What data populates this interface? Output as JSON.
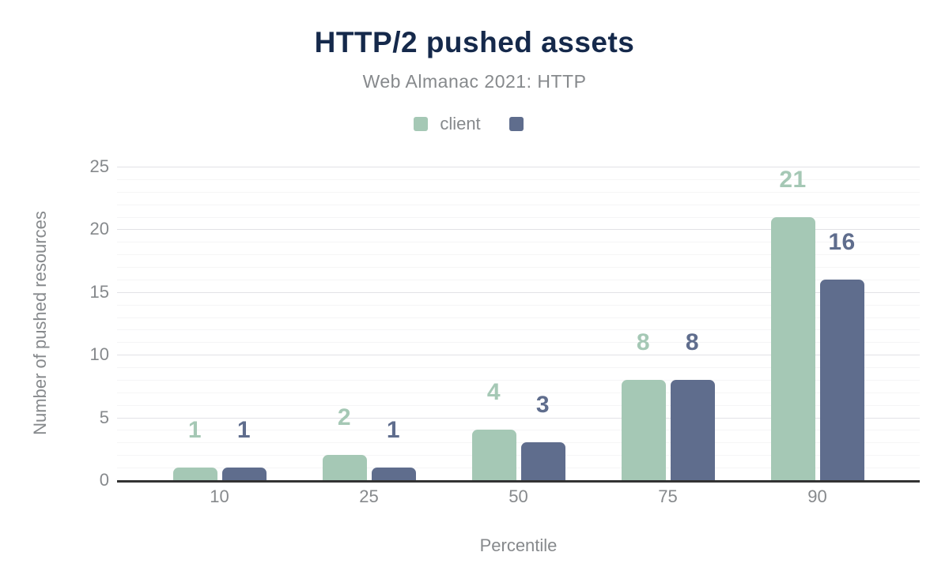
{
  "colors": {
    "title_text": "#15294b",
    "muted_text": "#86898c",
    "axis_line": "#333333",
    "grid_major": "#e2e2e6",
    "grid_minor": "#f5f5f6",
    "background": "#ffffff",
    "series_client": "#a5c8b5",
    "series_second": "#5f6d8d"
  },
  "chart_data": {
    "type": "bar",
    "title": "HTTP/2 pushed assets",
    "subtitle": "Web Almanac 2021: HTTP",
    "categories": [
      "10",
      "25",
      "50",
      "75",
      "90"
    ],
    "series": [
      {
        "name": "client",
        "color": "#a5c8b5",
        "values": [
          1,
          2,
          4,
          8,
          21
        ]
      },
      {
        "name": "",
        "color": "#5f6d8d",
        "values": [
          1,
          1,
          3,
          8,
          16
        ]
      }
    ],
    "xlabel": "Percentile",
    "ylabel": "Number of pushed resources",
    "ylim": [
      0,
      25
    ],
    "ytick_step": 5,
    "ytick_labels": [
      "0",
      "5",
      "10",
      "15",
      "20",
      "25"
    ],
    "grid": "horizontal",
    "legend_position": "top-center",
    "data_labels": true
  }
}
